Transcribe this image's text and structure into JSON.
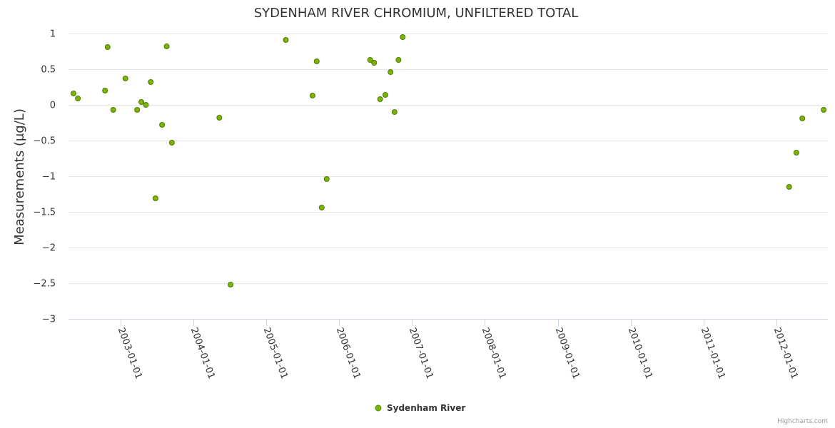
{
  "chart_data": {
    "type": "scatter",
    "title": "SYDENHAM RIVER CHROMIUM, UNFILTERED TOTAL",
    "xlabel": "",
    "ylabel": "Measurements (μg/L)",
    "ylim": [
      -3,
      1
    ],
    "yticks": [
      1,
      0.5,
      0,
      -0.5,
      -1,
      -1.5,
      -2,
      -2.5,
      -3
    ],
    "ytick_labels": [
      "1",
      "0.5",
      "0",
      "−0.5",
      "−1",
      "−1.5",
      "−2",
      "−2.5",
      "−3"
    ],
    "xlim": [
      "2002-04-15",
      "2012-09-15"
    ],
    "xticks": [
      "2003-01-01",
      "2004-01-01",
      "2005-01-01",
      "2006-01-01",
      "2007-01-01",
      "2008-01-01",
      "2009-01-01",
      "2010-01-01",
      "2011-01-01",
      "2012-01-01"
    ],
    "grid": true,
    "legend_position": "bottom-center",
    "series": [
      {
        "name": "Sydenham River",
        "color": "#7cb305",
        "points": [
          {
            "x": "2002-05-10",
            "y": 0.16
          },
          {
            "x": "2002-06-01",
            "y": 0.09
          },
          {
            "x": "2002-10-15",
            "y": 0.2
          },
          {
            "x": "2002-10-28",
            "y": 0.81
          },
          {
            "x": "2002-11-25",
            "y": -0.07
          },
          {
            "x": "2003-01-25",
            "y": 0.37
          },
          {
            "x": "2003-03-25",
            "y": -0.07
          },
          {
            "x": "2003-04-15",
            "y": 0.04
          },
          {
            "x": "2003-05-08",
            "y": 0.0
          },
          {
            "x": "2003-06-01",
            "y": 0.32
          },
          {
            "x": "2003-06-25",
            "y": -1.31
          },
          {
            "x": "2003-07-28",
            "y": -0.28
          },
          {
            "x": "2003-08-20",
            "y": 0.82
          },
          {
            "x": "2003-09-15",
            "y": -0.53
          },
          {
            "x": "2004-05-10",
            "y": -0.18
          },
          {
            "x": "2004-07-05",
            "y": -2.52
          },
          {
            "x": "2005-04-08",
            "y": 0.91
          },
          {
            "x": "2005-08-20",
            "y": 0.13
          },
          {
            "x": "2005-09-10",
            "y": 0.61
          },
          {
            "x": "2005-10-05",
            "y": -1.44
          },
          {
            "x": "2005-10-30",
            "y": -1.04
          },
          {
            "x": "2006-06-05",
            "y": 0.63
          },
          {
            "x": "2006-06-25",
            "y": 0.59
          },
          {
            "x": "2006-07-25",
            "y": 0.08
          },
          {
            "x": "2006-08-20",
            "y": 0.14
          },
          {
            "x": "2006-09-15",
            "y": 0.46
          },
          {
            "x": "2006-10-05",
            "y": -0.1
          },
          {
            "x": "2006-10-25",
            "y": 0.63
          },
          {
            "x": "2006-11-15",
            "y": 0.95
          },
          {
            "x": "2012-03-05",
            "y": -1.15
          },
          {
            "x": "2012-04-10",
            "y": -0.67
          },
          {
            "x": "2012-05-10",
            "y": -0.19
          },
          {
            "x": "2012-08-25",
            "y": -0.07
          }
        ]
      }
    ]
  },
  "credits": "Highcharts.com"
}
